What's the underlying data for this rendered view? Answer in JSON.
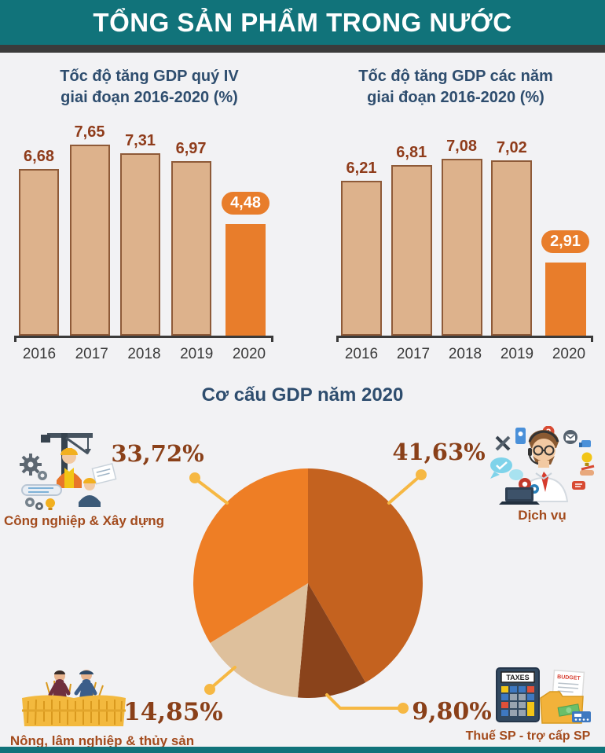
{
  "header": {
    "title": "TỔNG SẢN PHẨM TRONG NƯỚC"
  },
  "chart_data": [
    {
      "type": "bar",
      "id": "gdp-growth-q4",
      "title": "Tốc độ tăng GDP quý IV",
      "subtitle": "giai đoạn 2016-2020 (%)",
      "categories": [
        "2016",
        "2017",
        "2018",
        "2019",
        "2020"
      ],
      "values": [
        6.68,
        7.65,
        7.31,
        6.97,
        4.48
      ],
      "value_labels": [
        "6,68",
        "7,65",
        "7,31",
        "6,97",
        "4,48"
      ],
      "highlight_index": 4,
      "bar_color": "#ddb28c",
      "bar_border_color": "#8e5a38",
      "highlight_color": "#e87d2b",
      "ylim": [
        0,
        8.5
      ],
      "grid": false
    },
    {
      "type": "bar",
      "id": "gdp-growth-annual",
      "title": "Tốc độ tăng GDP các năm",
      "subtitle": "giai đoạn 2016-2020 (%)",
      "categories": [
        "2016",
        "2017",
        "2018",
        "2019",
        "2020"
      ],
      "values": [
        6.21,
        6.81,
        7.08,
        7.02,
        2.91
      ],
      "value_labels": [
        "6,21",
        "6,81",
        "7,08",
        "7,02",
        "2,91"
      ],
      "highlight_index": 4,
      "bar_color": "#ddb28c",
      "bar_border_color": "#8e5a38",
      "highlight_color": "#e87d2b",
      "ylim": [
        0,
        8.5
      ],
      "grid": false
    },
    {
      "type": "pie",
      "id": "gdp-structure-2020",
      "title": "Cơ cấu GDP năm 2020",
      "start_angle_deg": 0,
      "direction": "clockwise",
      "slices": [
        {
          "label": "Dịch vụ",
          "value": 41.63,
          "display": "41,63%",
          "color": "#c4621f"
        },
        {
          "label": "Thuế SP - trợ cấp SP",
          "value": 9.8,
          "display": "9,80%",
          "color": "#8a431b"
        },
        {
          "label": "Nông, lâm nghiệp & thủy sản",
          "value": 14.85,
          "display": "14,85%",
          "color": "#dec09c"
        },
        {
          "label": "Công nghiệp & Xây dựng",
          "value": 33.72,
          "display": "33,72%",
          "color": "#ee7e25"
        }
      ]
    }
  ],
  "icon_text": {
    "taxes": "TAXES",
    "budget": "BUDGET"
  },
  "icons": [
    "construction-industry-icon",
    "services-support-icon",
    "agriculture-harvest-icon",
    "tax-calculator-icon"
  ],
  "colors": {
    "header_bg": "#11737a",
    "header_text": "#ffffff",
    "header_strip": "#3b3b3b",
    "background": "#f2f2f4",
    "section_title": "#2e4d6e",
    "bar_value_text": "#8f3c1b",
    "percent_text": "#8a4019",
    "category_text": "#a34b1d",
    "axis": "#3a3a3a",
    "leader_line": "#f6b843",
    "footer_bar": "#11737a"
  }
}
